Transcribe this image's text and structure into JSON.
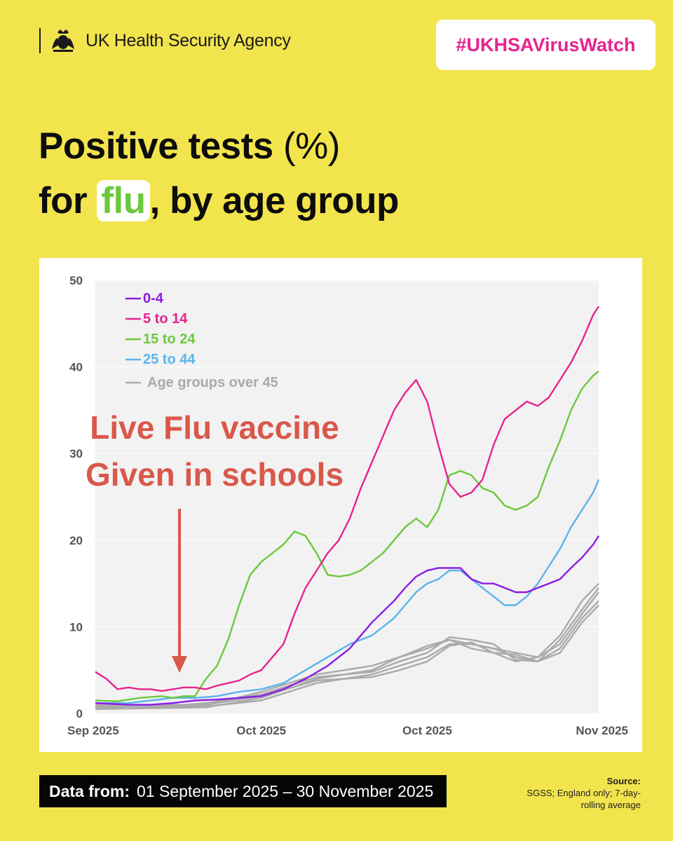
{
  "header": {
    "agency": "UK Health Security Agency",
    "hashtag": "#UKHSAVirusWatch"
  },
  "title": {
    "line1_bold": "Positive tests",
    "line1_rest": " (%)",
    "line2_pre": "for ",
    "line2_highlight": "flu",
    "line2_post": ", by age group"
  },
  "annotation": {
    "line1": "Live Flu vaccine",
    "line2": "Given in schools"
  },
  "footer": {
    "label": "Data from:",
    "range": "01 September 2025 – 30 November 2025",
    "source_label": "Source:",
    "source_line1": "SGSS; England only; 7-day-",
    "source_line2": "rolling average"
  },
  "colors": {
    "background": "#f2e44d",
    "hashtag": "#e6238f",
    "flu": "#6cc83c",
    "annotation": "#d9584a"
  },
  "chart_data": {
    "type": "line",
    "title": "Positive tests (%) for flu, by age group",
    "xlabel": "",
    "ylabel": "",
    "xlim": [
      0,
      91
    ],
    "ylim": [
      0,
      50
    ],
    "yticks": [
      0,
      10,
      20,
      30,
      40,
      50
    ],
    "xticks": [
      {
        "x": 0,
        "label": "Sep 2025"
      },
      {
        "x": 30,
        "label": "Oct 2025"
      },
      {
        "x": 60,
        "label": "Oct 2025"
      },
      {
        "x": 91,
        "label": "Nov 2025"
      }
    ],
    "grid": true,
    "legend_position": "top-left",
    "x_unit": "days since 01 September 2025",
    "series": [
      {
        "name": "0-4",
        "color": "#8a1be6",
        "x": [
          0,
          6,
          10,
          14,
          18,
          22,
          26,
          30,
          34,
          38,
          42,
          46,
          50,
          54,
          56,
          58,
          60,
          62,
          64,
          66,
          68,
          70,
          72,
          74,
          76,
          78,
          80,
          82,
          84,
          86,
          88,
          90,
          91
        ],
        "y": [
          1.2,
          1.0,
          1.0,
          1.2,
          1.5,
          1.6,
          1.8,
          2.0,
          2.8,
          4.0,
          5.5,
          7.5,
          10.5,
          13.0,
          14.5,
          15.8,
          16.5,
          16.8,
          16.8,
          16.8,
          15.5,
          15.0,
          15.0,
          14.5,
          14.0,
          14.0,
          14.5,
          15.0,
          15.5,
          16.8,
          18.0,
          19.5,
          20.5
        ]
      },
      {
        "name": "5 to 14",
        "color": "#e6238f",
        "x": [
          0,
          2,
          4,
          6,
          8,
          10,
          12,
          14,
          16,
          18,
          20,
          22,
          24,
          26,
          28,
          30,
          32,
          34,
          36,
          38,
          40,
          42,
          44,
          46,
          48,
          50,
          52,
          54,
          56,
          58,
          60,
          62,
          64,
          66,
          68,
          70,
          72,
          74,
          76,
          78,
          80,
          82,
          84,
          86,
          88,
          90,
          91
        ],
        "y": [
          4.8,
          4.0,
          2.8,
          3.0,
          2.8,
          2.8,
          2.6,
          2.8,
          3.0,
          3.0,
          2.8,
          3.2,
          3.5,
          3.8,
          4.5,
          5.0,
          6.5,
          8.0,
          11.5,
          14.5,
          16.5,
          18.5,
          20.0,
          22.5,
          26.0,
          29.0,
          32.0,
          35.0,
          37.0,
          38.5,
          36.0,
          31.0,
          26.5,
          25.0,
          25.5,
          27.0,
          31.0,
          34.0,
          35.0,
          36.0,
          35.5,
          36.5,
          38.5,
          40.5,
          43.0,
          46.0,
          47.0
        ]
      },
      {
        "name": "15 to 24",
        "color": "#6cc83c",
        "x": [
          0,
          4,
          8,
          12,
          14,
          16,
          18,
          20,
          22,
          24,
          26,
          28,
          30,
          32,
          34,
          36,
          38,
          40,
          42,
          44,
          46,
          48,
          50,
          52,
          54,
          56,
          58,
          60,
          62,
          64,
          66,
          68,
          70,
          72,
          74,
          76,
          78,
          80,
          82,
          84,
          86,
          88,
          90,
          91
        ],
        "y": [
          1.5,
          1.4,
          1.8,
          2.0,
          1.8,
          2.0,
          2.0,
          4.0,
          5.5,
          8.5,
          12.5,
          16.0,
          17.5,
          18.5,
          19.5,
          21.0,
          20.5,
          18.5,
          16.0,
          15.8,
          16.0,
          16.5,
          17.5,
          18.5,
          20.0,
          21.5,
          22.5,
          21.5,
          23.5,
          27.5,
          28.0,
          27.5,
          26.0,
          25.5,
          24.0,
          23.5,
          24.0,
          25.0,
          28.5,
          31.5,
          35.0,
          37.5,
          39.0,
          39.5
        ]
      },
      {
        "name": "25 to 44",
        "color": "#5ab4ec",
        "x": [
          0,
          6,
          10,
          14,
          18,
          22,
          26,
          30,
          34,
          38,
          42,
          46,
          50,
          54,
          56,
          58,
          60,
          62,
          64,
          66,
          68,
          70,
          72,
          74,
          76,
          78,
          80,
          82,
          84,
          86,
          88,
          90,
          91
        ],
        "y": [
          1.2,
          1.2,
          1.5,
          1.8,
          1.8,
          2.0,
          2.5,
          2.8,
          3.5,
          5.0,
          6.5,
          8.0,
          9.0,
          11.0,
          12.5,
          14.0,
          15.0,
          15.5,
          16.5,
          16.5,
          15.5,
          14.5,
          13.5,
          12.5,
          12.5,
          13.5,
          15.0,
          17.0,
          19.0,
          21.5,
          23.5,
          25.5,
          27.0
        ]
      },
      {
        "name": "Age groups over 45",
        "color": "#aaaaaa",
        "x": [
          0,
          10,
          20,
          30,
          40,
          50,
          55,
          60,
          64,
          68,
          72,
          76,
          80,
          84,
          88,
          91
        ],
        "y": [
          0.8,
          0.8,
          0.8,
          1.5,
          3.5,
          4.5,
          5.5,
          6.5,
          8.0,
          8.0,
          7.5,
          6.5,
          6.0,
          8.5,
          12.0,
          14.5
        ]
      },
      {
        "name": "",
        "color": "#aaaaaa",
        "x": [
          0,
          10,
          20,
          30,
          40,
          50,
          55,
          60,
          64,
          68,
          72,
          76,
          80,
          84,
          88,
          91
        ],
        "y": [
          0.5,
          0.6,
          0.7,
          1.8,
          4.0,
          5.0,
          6.5,
          7.5,
          8.5,
          7.5,
          7.0,
          6.0,
          6.5,
          9.0,
          13.0,
          15.0
        ]
      },
      {
        "name": "",
        "color": "#aaaaaa",
        "x": [
          0,
          10,
          20,
          30,
          40,
          50,
          55,
          60,
          64,
          68,
          72,
          76,
          80,
          84,
          88,
          91
        ],
        "y": [
          1.0,
          1.0,
          1.0,
          2.0,
          3.8,
          4.2,
          5.0,
          6.0,
          7.8,
          8.2,
          7.0,
          6.8,
          6.0,
          7.5,
          11.0,
          13.0
        ]
      },
      {
        "name": "",
        "color": "#aaaaaa",
        "x": [
          0,
          10,
          20,
          30,
          40,
          50,
          55,
          60,
          64,
          68,
          72,
          76,
          80,
          84,
          88,
          91
        ],
        "y": [
          0.6,
          0.9,
          0.9,
          2.5,
          4.5,
          5.5,
          6.5,
          7.8,
          8.5,
          8.0,
          7.5,
          7.0,
          6.5,
          8.0,
          11.5,
          14.0
        ]
      },
      {
        "name": "",
        "color": "#aaaaaa",
        "x": [
          0,
          10,
          20,
          30,
          40,
          50,
          55,
          60,
          64,
          68,
          72,
          76,
          80,
          84,
          88,
          91
        ],
        "y": [
          0.9,
          0.7,
          1.2,
          2.2,
          4.2,
          4.8,
          6.0,
          7.0,
          8.8,
          8.5,
          8.0,
          6.2,
          6.0,
          7.0,
          10.5,
          12.5
        ]
      }
    ]
  }
}
